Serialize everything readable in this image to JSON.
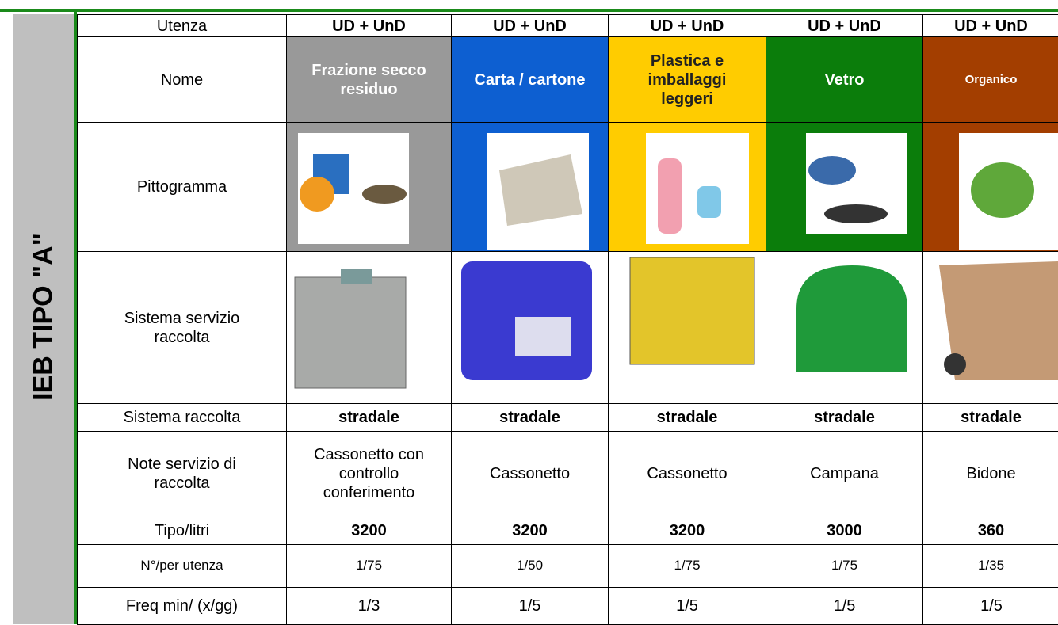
{
  "side_label": "IEB TIPO \"A\"",
  "table": {
    "rows": [
      {
        "label": "Utenza",
        "cells": [
          "UD + UnD",
          "UD + UnD",
          "UD + UnD",
          "UD + UnD",
          "UD + UnD"
        ]
      },
      {
        "label": "Nome",
        "cells": [
          "Frazione secco residuo",
          "Carta / cartone",
          "Plastica e imballaggi leggeri",
          "Vetro",
          "Organico"
        ]
      },
      {
        "label": "Pittogramma"
      },
      {
        "label": "Sistema servizio raccolta"
      },
      {
        "label": "Sistema raccolta",
        "cells": [
          "stradale",
          "stradale",
          "stradale",
          "stradale",
          "stradale"
        ]
      },
      {
        "label": "Note servizio di raccolta",
        "cells": [
          "Cassonetto con controllo conferimento",
          "Cassonetto",
          "Cassonetto",
          "Campana",
          "Bidone"
        ]
      },
      {
        "label": "Tipo/litri",
        "cells": [
          "3200",
          "3200",
          "3200",
          "3000",
          "360"
        ]
      },
      {
        "label": "N°/per utenza",
        "cells": [
          "1/75",
          "1/50",
          "1/75",
          "1/75",
          "1/35"
        ]
      },
      {
        "label": "Freq min/ (x/gg)",
        "cells": [
          "1/3",
          "1/5",
          "1/5",
          "1/5",
          "1/5"
        ]
      }
    ]
  }
}
